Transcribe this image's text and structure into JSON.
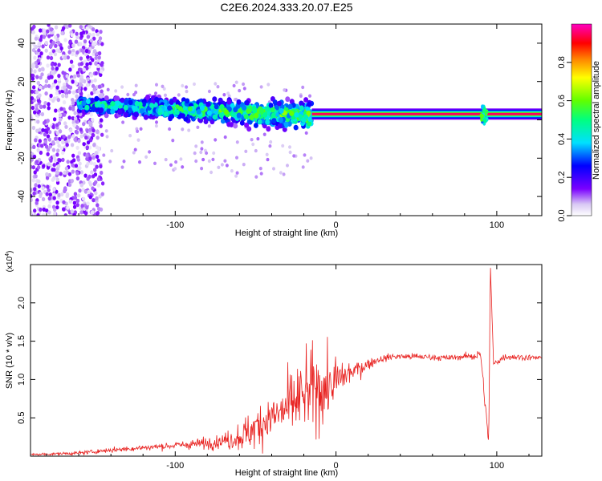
{
  "title": "C2E6.2024.333.20.07.E25",
  "colors": {
    "snr_line": "#e8201e",
    "axis": "#000000",
    "background": "#ffffff"
  },
  "chart_data": [
    {
      "type": "heatmap",
      "xlabel": "Height of straight line (km)",
      "ylabel": "Frequency (Hz)",
      "xlim": [
        -190,
        128
      ],
      "ylim": [
        -50,
        50
      ],
      "x_ticks": [
        -100,
        0,
        100
      ],
      "y_ticks": [
        -40,
        -20,
        0,
        20,
        40
      ],
      "colorbar": {
        "label": "Normalized spectral amplitude",
        "range": [
          0,
          1
        ],
        "ticks": [
          "0.0",
          "0.2",
          "0.4",
          "0.6",
          "0.8"
        ],
        "colormap": "rainbow (purple-blue-cyan-green-yellow-red-magenta)"
      },
      "features": {
        "noise_region_km": [
          -190,
          -145
        ],
        "noise_amplitude": 0.08,
        "spread_band": {
          "x_km": [
            -160,
            -15
          ],
          "freq_center_hz": [
            8,
            2
          ],
          "halfwidth_hz": [
            5,
            10
          ],
          "amplitude": [
            0.45,
            0.6
          ]
        },
        "carrier_band": {
          "x_km": [
            -15,
            128
          ],
          "freq_hz": 3,
          "amplitude": 0.95,
          "perturbation_km": 92
        }
      }
    },
    {
      "type": "line",
      "xlabel": "Height of straight line (km)",
      "ylabel": "SNR (10 * v/v)",
      "y_multiplier": "(x10",
      "y_multiplier_exp": "4",
      "y_multiplier_close": ")",
      "xlim": [
        -190,
        128
      ],
      "ylim": [
        0,
        2.5
      ],
      "x_ticks": [
        -100,
        0,
        100
      ],
      "y_ticks": [
        0.5,
        1.0,
        1.5,
        2.0
      ],
      "y_tick_labels": [
        "0.5",
        "1.0",
        "1.5",
        "2.0"
      ],
      "series": [
        {
          "points": [
            [
              -190,
              0.02
            ],
            [
              -160,
              0.04
            ],
            [
              -140,
              0.08
            ],
            [
              -120,
              0.11
            ],
            [
              -100,
              0.14
            ],
            [
              -80,
              0.17
            ],
            [
              -65,
              0.22
            ],
            [
              -55,
              0.3
            ],
            [
              -45,
              0.45
            ],
            [
              -35,
              0.55
            ],
            [
              -25,
              0.72
            ],
            [
              -15,
              0.85
            ],
            [
              -5,
              0.9
            ],
            [
              5,
              1.05
            ],
            [
              15,
              1.15
            ],
            [
              25,
              1.25
            ],
            [
              35,
              1.3
            ],
            [
              50,
              1.3
            ],
            [
              70,
              1.28
            ],
            [
              90,
              1.32
            ],
            [
              95,
              0.16
            ],
            [
              96,
              2.5
            ],
            [
              98,
              1.2
            ],
            [
              105,
              1.3
            ],
            [
              128,
              1.28
            ]
          ],
          "noise_amplitude": [
            [
              -190,
              0.01
            ],
            [
              -100,
              0.04
            ],
            [
              -70,
              0.08
            ],
            [
              -55,
              0.2
            ],
            [
              -30,
              0.35
            ],
            [
              -15,
              0.45
            ],
            [
              -5,
              0.35
            ],
            [
              10,
              0.12
            ],
            [
              25,
              0.04
            ],
            [
              80,
              0.03
            ],
            [
              88,
              0.08
            ],
            [
              100,
              0.04
            ],
            [
              128,
              0.03
            ]
          ]
        }
      ]
    }
  ]
}
